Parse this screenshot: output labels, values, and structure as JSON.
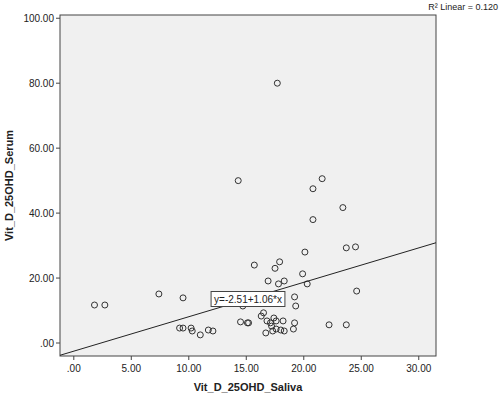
{
  "chart_data": {
    "type": "scatter",
    "x_label": "Vit_D_25OHD_Saliva",
    "y_label": "Vit_D_25OHD_Serum",
    "r2_label": "R² Linear = 0.120",
    "fit": {
      "intercept": -2.51,
      "slope": 1.06,
      "label": "y=-2.51+1.06*x"
    },
    "marker": "circle",
    "color": "#333333",
    "x": [
      1.8,
      2.7,
      7.4,
      9.5,
      9.2,
      9.5,
      10.2,
      10.3,
      11.0,
      11.7,
      12.1,
      14.3,
      14.5,
      15.1,
      15.2,
      14.7,
      15.7,
      16.3,
      16.5,
      16.8,
      16.7,
      17.1,
      17.2,
      17.4,
      17.3,
      17.6,
      17.6,
      16.9,
      17.5,
      17.9,
      17.7,
      17.8,
      18.2,
      18.3,
      18.0,
      18.3,
      19.2,
      19.1,
      19.2,
      19.3,
      19.9,
      20.1,
      20.3,
      20.8,
      20.8,
      21.6,
      22.2,
      23.7,
      23.4,
      23.7,
      24.5,
      24.6
    ],
    "values": [
      11.7,
      11.7,
      15.1,
      13.9,
      4.6,
      4.6,
      4.6,
      3.7,
      2.5,
      4.0,
      3.7,
      50.0,
      6.5,
      6.2,
      6.2,
      11.4,
      24.0,
      8.3,
      9.3,
      6.8,
      3.1,
      6.2,
      5.2,
      7.7,
      3.7,
      6.8,
      4.3,
      19.1,
      23.0,
      25.0,
      80.0,
      18.2,
      6.8,
      19.1,
      4.0,
      3.7,
      6.2,
      4.3,
      14.2,
      11.4,
      21.3,
      28.0,
      18.2,
      47.5,
      38.0,
      50.6,
      5.6,
      5.6,
      41.7,
      29.3,
      29.6,
      16.0
    ],
    "xlim": [
      -1.2,
      31.5
    ],
    "ylim": [
      -4,
      101
    ],
    "xticks": [
      {
        "value": 0,
        "label": ".00"
      },
      {
        "value": 5,
        "label": "5.00"
      },
      {
        "value": 10,
        "label": "10.00"
      },
      {
        "value": 15,
        "label": "15.00"
      },
      {
        "value": 20,
        "label": "20.00"
      },
      {
        "value": 25,
        "label": "25.00"
      },
      {
        "value": 30,
        "label": "30.00"
      }
    ],
    "yticks": [
      {
        "value": 0,
        "label": ".00"
      },
      {
        "value": 20,
        "label": "20.00"
      },
      {
        "value": 40,
        "label": "40.00"
      },
      {
        "value": 60,
        "label": "60.00"
      },
      {
        "value": 80,
        "label": "80.00"
      },
      {
        "value": 100,
        "label": "100.00"
      }
    ],
    "grid": false
  }
}
